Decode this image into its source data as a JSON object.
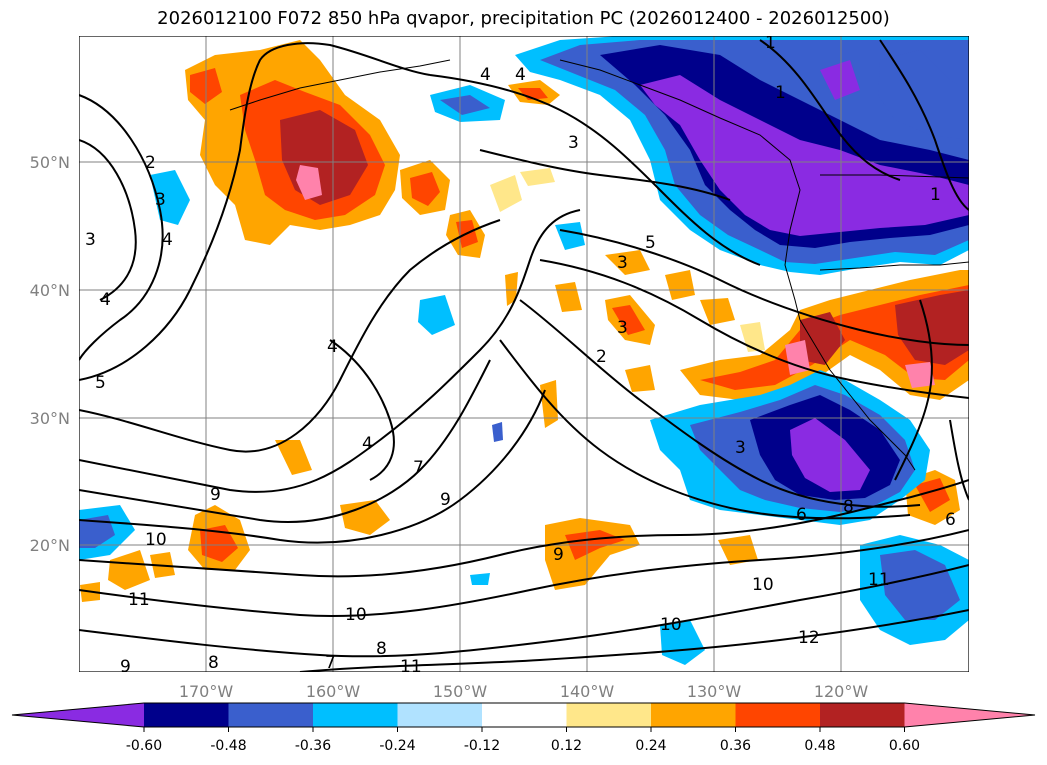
{
  "title": "2026012100 F072 850 hPa qvapor, precipitation PC (2026012400 - 2026012500)",
  "lon_ticks": [
    "170°W",
    "160°W",
    "150°W",
    "140°W",
    "130°W",
    "120°W"
  ],
  "lat_ticks": [
    "50°N",
    "40°N",
    "30°N",
    "20°N"
  ],
  "colorbar": {
    "tick_labels": [
      "-0.60",
      "-0.48",
      "-0.36",
      "-0.24",
      "-0.12",
      "0.12",
      "0.24",
      "0.36",
      "0.48",
      "0.60"
    ],
    "colors": [
      "#8a2be2",
      "#00008b",
      "#3a5fcd",
      "#00bfff",
      "#b0e2ff",
      "#ffffff",
      "#ffe78a",
      "#ffa500",
      "#ff4500",
      "#b22222",
      "#ff82ab"
    ]
  },
  "contour_labels": [
    "1",
    "1",
    "1",
    "2",
    "2",
    "3",
    "3",
    "3",
    "3",
    "3",
    "3",
    "4",
    "4",
    "4",
    "4",
    "4",
    "4",
    "5",
    "5",
    "6",
    "6",
    "7",
    "7",
    "8",
    "8",
    "8",
    "9",
    "9",
    "9",
    "9",
    "10",
    "10",
    "10",
    "10",
    "11",
    "11",
    "11",
    "12"
  ]
}
